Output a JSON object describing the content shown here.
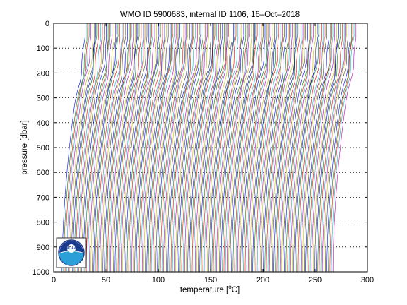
{
  "chart_data": {
    "type": "line",
    "title": "WMO ID 5900683, internal ID 1106, 16–Oct–2018",
    "xlabel": "temperature [",
    "xlabel_unit_sup": "o",
    "xlabel_unit": "C]",
    "ylabel": "pressure [dbar]",
    "xlim": [
      0,
      300
    ],
    "ylim": [
      0,
      1000
    ],
    "y_reversed": true,
    "x_ticks": [
      0,
      50,
      100,
      150,
      200,
      250,
      300
    ],
    "y_ticks": [
      0,
      100,
      200,
      300,
      400,
      500,
      600,
      700,
      800,
      900,
      1000
    ],
    "x_tick_labels": [
      "0",
      "50",
      "100",
      "150",
      "200",
      "250",
      "300"
    ],
    "y_tick_labels": [
      "0",
      "100",
      "200",
      "300",
      "400",
      "500",
      "600",
      "700",
      "800",
      "900",
      "1000"
    ],
    "grid": "horizontal dotted",
    "profile_layout": "waterfall of temperature profiles, each offset along the x axis",
    "profile_count": 180,
    "profile_deep_value_first": 8,
    "profile_deep_value_last": 267,
    "profile_surface_warming": 22,
    "line_colors": [
      "#0000ff",
      "#008000",
      "#ff0000",
      "#00bfbf",
      "#bf00bf",
      "#bfbf00",
      "#404040"
    ],
    "logo": "noaa-logo"
  }
}
